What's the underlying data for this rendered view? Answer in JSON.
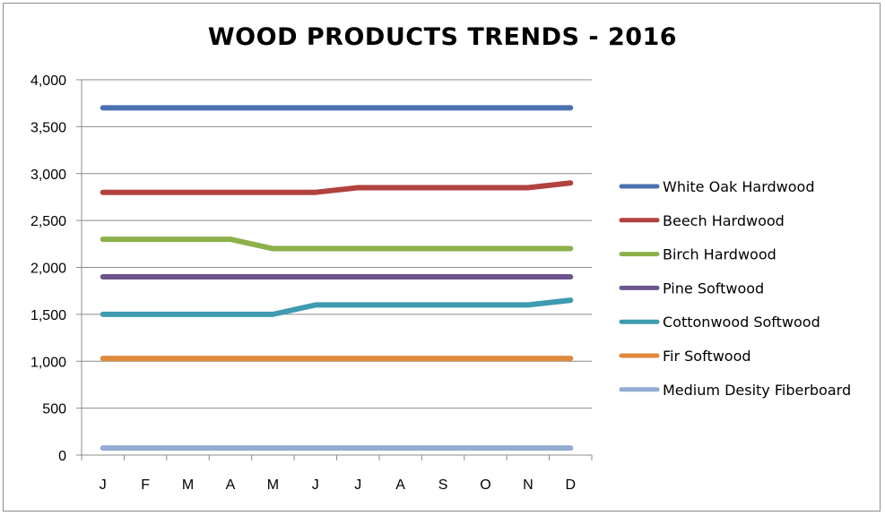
{
  "chart_data": {
    "type": "line",
    "title": "WOOD PRODUCTS TRENDS - 2016",
    "xlabel": "",
    "ylabel": "",
    "categories": [
      "J",
      "F",
      "M",
      "A",
      "M",
      "J",
      "J",
      "A",
      "S",
      "O",
      "N",
      "D"
    ],
    "ylim": [
      0,
      4000
    ],
    "yticks": [
      "0",
      "500",
      "1,000",
      "1,500",
      "2,000",
      "2,500",
      "3,000",
      "3,500",
      "4,000"
    ],
    "ytick_values": [
      0,
      500,
      1000,
      1500,
      2000,
      2500,
      3000,
      3500,
      4000
    ],
    "grid": true,
    "legend_position": "right",
    "series": [
      {
        "name": "White Oak Hardwood",
        "color": "#4a72b0",
        "values": [
          3700,
          3700,
          3700,
          3700,
          3700,
          3700,
          3700,
          3700,
          3700,
          3700,
          3700,
          3700
        ]
      },
      {
        "name": "Beech Hardwood",
        "color": "#b2423e",
        "values": [
          2800,
          2800,
          2800,
          2800,
          2800,
          2800,
          2850,
          2850,
          2850,
          2850,
          2850,
          2900
        ]
      },
      {
        "name": "Birch Hardwood",
        "color": "#8cb04a",
        "values": [
          2300,
          2300,
          2300,
          2300,
          2200,
          2200,
          2200,
          2200,
          2200,
          2200,
          2200,
          2200
        ]
      },
      {
        "name": "Pine Softwood",
        "color": "#6e548f",
        "values": [
          1900,
          1900,
          1900,
          1900,
          1900,
          1900,
          1900,
          1900,
          1900,
          1900,
          1900,
          1900
        ]
      },
      {
        "name": "Cottonwood Softwood",
        "color": "#3e9bb0",
        "values": [
          1500,
          1500,
          1500,
          1500,
          1500,
          1600,
          1600,
          1600,
          1600,
          1600,
          1600,
          1650
        ]
      },
      {
        "name": "Fir Softwood",
        "color": "#e08a3c",
        "values": [
          1030,
          1030,
          1030,
          1030,
          1030,
          1030,
          1030,
          1030,
          1030,
          1030,
          1030,
          1030
        ]
      },
      {
        "name": "Medium Desity Fiberboard",
        "color": "#93acd4",
        "values": [
          75,
          75,
          75,
          75,
          75,
          75,
          75,
          75,
          75,
          75,
          75,
          75
        ]
      }
    ]
  }
}
